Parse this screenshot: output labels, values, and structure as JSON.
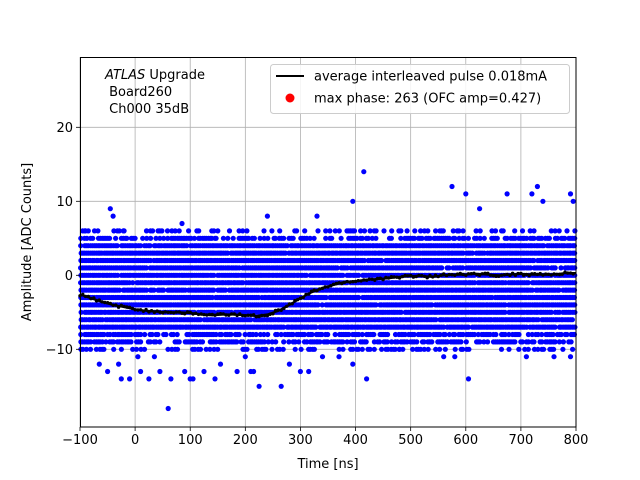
{
  "chart_data": {
    "type": "scatter",
    "title": "",
    "xlabel": "Time [ns]",
    "ylabel": "Amplitude [ADC Counts]",
    "xlim": [
      -100,
      800
    ],
    "ylim": [
      -20.5,
      29.5
    ],
    "xticks": [
      -100,
      0,
      100,
      200,
      300,
      400,
      500,
      600,
      700,
      800
    ],
    "yticks": [
      -10,
      0,
      10,
      20
    ],
    "grid": true,
    "annotation": {
      "experiment": "ATLAS",
      "line1_rest": " Upgrade",
      "line2": " Board260",
      "line3": " Ch000 35dB"
    },
    "legend": {
      "position": "top-right",
      "entries": [
        {
          "label": "average interleaved pulse 0.018mA",
          "kind": "line",
          "color": "#000000"
        },
        {
          "label": "max phase: 263 (OFC amp=0.427)",
          "kind": "marker",
          "color": "#ff0000"
        }
      ]
    },
    "series": [
      {
        "name": "samples",
        "kind": "scatter",
        "color": "#0000ff",
        "note": "dense band of interleaved samples at integer ADC levels",
        "band_levels": [
          -9,
          -8,
          -7,
          -6,
          -5,
          -4,
          -3,
          -2,
          -1,
          0,
          1,
          2,
          3,
          4,
          5
        ],
        "sparse_levels": [
          -10,
          6
        ],
        "outliers": [
          {
            "x": -90,
            "y": 6
          },
          {
            "x": -45,
            "y": 9
          },
          {
            "x": -40,
            "y": 8
          },
          {
            "x": -20,
            "y": 6
          },
          {
            "x": -15,
            "y": 5
          },
          {
            "x": 0,
            "y": 5
          },
          {
            "x": 85,
            "y": 7
          },
          {
            "x": 80,
            "y": 6
          },
          {
            "x": 145,
            "y": 5
          },
          {
            "x": 240,
            "y": 8
          },
          {
            "x": 330,
            "y": 8
          },
          {
            "x": 395,
            "y": 10
          },
          {
            "x": 415,
            "y": 14
          },
          {
            "x": 575,
            "y": 12
          },
          {
            "x": 600,
            "y": 11
          },
          {
            "x": 625,
            "y": 9
          },
          {
            "x": 675,
            "y": 11
          },
          {
            "x": 720,
            "y": 11
          },
          {
            "x": 730,
            "y": 12
          },
          {
            "x": 740,
            "y": 10
          },
          {
            "x": 790,
            "y": 11
          },
          {
            "x": 795,
            "y": 10
          },
          {
            "x": -95,
            "y": -10
          },
          {
            "x": -65,
            "y": -12
          },
          {
            "x": -50,
            "y": -13
          },
          {
            "x": -30,
            "y": -12
          },
          {
            "x": -25,
            "y": -14
          },
          {
            "x": -10,
            "y": -14
          },
          {
            "x": 5,
            "y": -11
          },
          {
            "x": 10,
            "y": -13
          },
          {
            "x": 25,
            "y": -14
          },
          {
            "x": 35,
            "y": -11
          },
          {
            "x": 45,
            "y": -13
          },
          {
            "x": 60,
            "y": -18
          },
          {
            "x": 65,
            "y": -14
          },
          {
            "x": 90,
            "y": -13
          },
          {
            "x": 100,
            "y": -14
          },
          {
            "x": 105,
            "y": -14
          },
          {
            "x": 125,
            "y": -13
          },
          {
            "x": 145,
            "y": -14
          },
          {
            "x": 155,
            "y": -12
          },
          {
            "x": 185,
            "y": -13
          },
          {
            "x": 200,
            "y": -11
          },
          {
            "x": 210,
            "y": -13
          },
          {
            "x": 215,
            "y": -13
          },
          {
            "x": 225,
            "y": -15
          },
          {
            "x": 265,
            "y": -15
          },
          {
            "x": 280,
            "y": -12
          },
          {
            "x": 300,
            "y": -13
          },
          {
            "x": 315,
            "y": -13
          },
          {
            "x": 340,
            "y": -11
          },
          {
            "x": 370,
            "y": -11
          },
          {
            "x": 395,
            "y": -12
          },
          {
            "x": 420,
            "y": -14
          },
          {
            "x": 480,
            "y": -10
          },
          {
            "x": 560,
            "y": -11
          },
          {
            "x": 580,
            "y": -11
          },
          {
            "x": 605,
            "y": -14
          },
          {
            "x": 710,
            "y": -11
          },
          {
            "x": 760,
            "y": -11
          },
          {
            "x": 790,
            "y": -11
          }
        ]
      },
      {
        "name": "average interleaved pulse 0.018mA",
        "kind": "line",
        "color": "#000000",
        "x": [
          -100,
          -80,
          -60,
          -40,
          -20,
          0,
          20,
          40,
          60,
          80,
          100,
          120,
          140,
          160,
          180,
          200,
          220,
          240,
          260,
          280,
          300,
          320,
          340,
          360,
          380,
          400,
          420,
          440,
          460,
          480,
          500,
          520,
          540,
          560,
          580,
          600,
          620,
          640,
          660,
          680,
          700,
          720,
          740,
          760,
          780,
          800
        ],
        "y": [
          -2.6,
          -3.1,
          -3.6,
          -4.0,
          -4.3,
          -4.6,
          -4.8,
          -4.9,
          -5.0,
          -5.0,
          -5.1,
          -5.3,
          -5.4,
          -5.3,
          -5.3,
          -5.4,
          -5.5,
          -5.3,
          -4.8,
          -4.0,
          -3.1,
          -2.3,
          -1.7,
          -1.3,
          -0.9,
          -0.8,
          -0.6,
          -0.5,
          -0.4,
          -0.2,
          -0.1,
          -0.1,
          -0.2,
          0.0,
          0.1,
          0.1,
          0.2,
          0.1,
          0.0,
          0.1,
          0.2,
          0.1,
          0.1,
          0.1,
          0.3,
          0.3
        ]
      }
    ]
  }
}
